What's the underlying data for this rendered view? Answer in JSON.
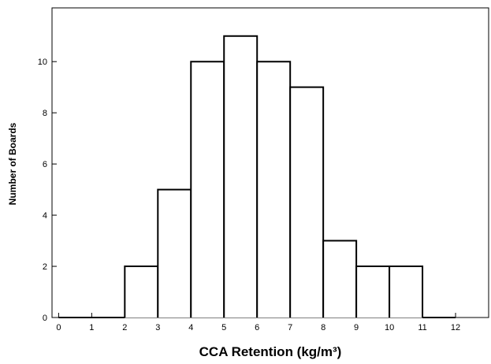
{
  "chart_data": {
    "type": "histogram",
    "x_label": "CCA Retention (kg/m³)",
    "y_label": "Number of Boards",
    "bins": [
      0,
      1,
      2,
      3,
      4,
      5,
      6,
      7,
      8,
      9,
      10,
      11,
      12
    ],
    "values": [
      0,
      0,
      2,
      5,
      10,
      11,
      10,
      9,
      3,
      2,
      2,
      0
    ],
    "color": "#ffffff",
    "xlim": [
      -0.2,
      13.0
    ],
    "ylim": [
      0,
      12.1
    ],
    "xticks": [
      0,
      1,
      2,
      3,
      4,
      5,
      6,
      7,
      8,
      9,
      10,
      11,
      12
    ],
    "yticks": [
      0,
      2,
      4,
      6,
      8,
      10
    ]
  }
}
